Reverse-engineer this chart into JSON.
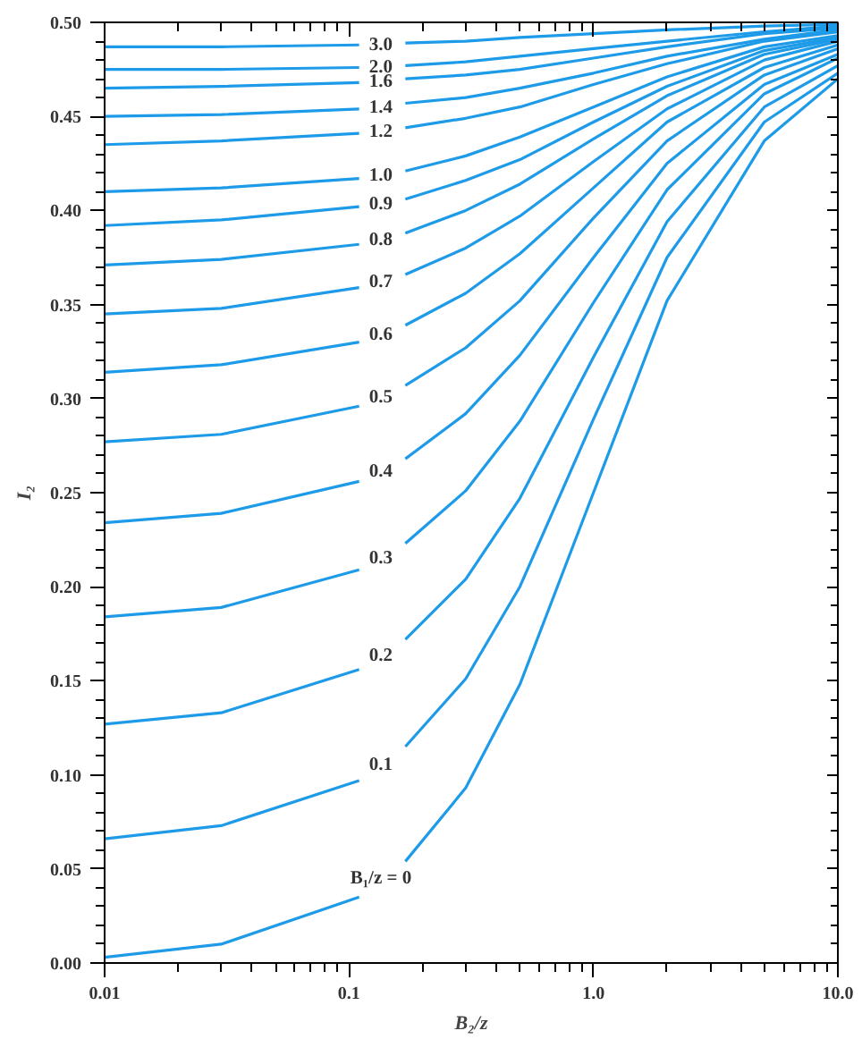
{
  "chart_data": {
    "type": "line",
    "xlabel": "B₂/z",
    "ylabel": "I₂",
    "log": "x",
    "grid": false,
    "marker": "none",
    "line_style": "solid",
    "xlim": [
      0.01,
      10
    ],
    "ylim": [
      0,
      0.5
    ],
    "xticks": [
      {
        "value": 0.01,
        "label": "0.01"
      },
      {
        "value": 0.02,
        "label": null
      },
      {
        "value": 0.03,
        "label": null
      },
      {
        "value": 0.04,
        "label": null
      },
      {
        "value": 0.05,
        "label": null
      },
      {
        "value": 0.06,
        "label": null
      },
      {
        "value": 0.07,
        "label": null
      },
      {
        "value": 0.08,
        "label": null
      },
      {
        "value": 0.09,
        "label": null
      },
      {
        "value": 0.1,
        "label": "0.1"
      },
      {
        "value": 0.2,
        "label": null
      },
      {
        "value": 0.3,
        "label": null
      },
      {
        "value": 0.4,
        "label": null
      },
      {
        "value": 0.5,
        "label": null
      },
      {
        "value": 0.6,
        "label": null
      },
      {
        "value": 0.7,
        "label": null
      },
      {
        "value": 0.8,
        "label": null
      },
      {
        "value": 0.9,
        "label": null
      },
      {
        "value": 1,
        "label": "1.0"
      },
      {
        "value": 2,
        "label": null
      },
      {
        "value": 3,
        "label": null
      },
      {
        "value": 4,
        "label": null
      },
      {
        "value": 5,
        "label": null
      },
      {
        "value": 6,
        "label": null
      },
      {
        "value": 7,
        "label": null
      },
      {
        "value": 8,
        "label": null
      },
      {
        "value": 9,
        "label": null
      },
      {
        "value": 10,
        "label": "10.0"
      }
    ],
    "yticks": [
      {
        "value": 0,
        "label": "0.00"
      },
      {
        "value": 0.01,
        "label": null
      },
      {
        "value": 0.02,
        "label": null
      },
      {
        "value": 0.03,
        "label": null
      },
      {
        "value": 0.04,
        "label": null
      },
      {
        "value": 0.05,
        "label": "0.05"
      },
      {
        "value": 0.06,
        "label": null
      },
      {
        "value": 0.07,
        "label": null
      },
      {
        "value": 0.08,
        "label": null
      },
      {
        "value": 0.09,
        "label": null
      },
      {
        "value": 0.1,
        "label": "0.10"
      },
      {
        "value": 0.11,
        "label": null
      },
      {
        "value": 0.12,
        "label": null
      },
      {
        "value": 0.13,
        "label": null
      },
      {
        "value": 0.14,
        "label": null
      },
      {
        "value": 0.15,
        "label": "0.15"
      },
      {
        "value": 0.16,
        "label": null
      },
      {
        "value": 0.17,
        "label": null
      },
      {
        "value": 0.18,
        "label": null
      },
      {
        "value": 0.19,
        "label": null
      },
      {
        "value": 0.2,
        "label": "0.20"
      },
      {
        "value": 0.21,
        "label": null
      },
      {
        "value": 0.22,
        "label": null
      },
      {
        "value": 0.23,
        "label": null
      },
      {
        "value": 0.24,
        "label": null
      },
      {
        "value": 0.25,
        "label": "0.25"
      },
      {
        "value": 0.26,
        "label": null
      },
      {
        "value": 0.27,
        "label": null
      },
      {
        "value": 0.28,
        "label": null
      },
      {
        "value": 0.29,
        "label": null
      },
      {
        "value": 0.3,
        "label": "0.30"
      },
      {
        "value": 0.31,
        "label": null
      },
      {
        "value": 0.32,
        "label": null
      },
      {
        "value": 0.33,
        "label": null
      },
      {
        "value": 0.34,
        "label": null
      },
      {
        "value": 0.35,
        "label": "0.35"
      },
      {
        "value": 0.36,
        "label": null
      },
      {
        "value": 0.37,
        "label": null
      },
      {
        "value": 0.38,
        "label": null
      },
      {
        "value": 0.39,
        "label": null
      },
      {
        "value": 0.4,
        "label": "0.40"
      },
      {
        "value": 0.41,
        "label": null
      },
      {
        "value": 0.42,
        "label": null
      },
      {
        "value": 0.43,
        "label": null
      },
      {
        "value": 0.44,
        "label": null
      },
      {
        "value": 0.45,
        "label": "0.45"
      },
      {
        "value": 0.46,
        "label": null
      },
      {
        "value": 0.47,
        "label": null
      },
      {
        "value": 0.48,
        "label": null
      },
      {
        "value": 0.49,
        "label": null
      },
      {
        "value": 0.5,
        "label": "0.50"
      }
    ],
    "x": [
      0.01,
      0.03,
      0.11,
      0.135,
      0.17,
      0.3,
      0.5,
      1,
      2,
      5,
      10
    ],
    "series": [
      {
        "name": "B₁/z = 0",
        "color": "#1e9be8",
        "values": [
          0.003,
          0.01,
          0.035,
          null,
          0.054,
          0.093,
          0.148,
          0.25,
          0.352,
          0.437,
          0.47
        ]
      },
      {
        "name": "0.1",
        "color": "#1e9be8",
        "values": [
          0.066,
          0.073,
          0.097,
          null,
          0.115,
          0.151,
          0.2,
          0.289,
          0.375,
          0.447,
          0.473
        ]
      },
      {
        "name": "0.2",
        "color": "#1e9be8",
        "values": [
          0.127,
          0.133,
          0.156,
          null,
          0.172,
          0.204,
          0.247,
          0.322,
          0.394,
          0.455,
          0.477
        ]
      },
      {
        "name": "0.3",
        "color": "#1e9be8",
        "values": [
          0.184,
          0.189,
          0.209,
          null,
          0.223,
          0.251,
          0.288,
          0.351,
          0.411,
          0.462,
          0.481
        ]
      },
      {
        "name": "0.4",
        "color": "#1e9be8",
        "values": [
          0.234,
          0.239,
          0.256,
          null,
          0.268,
          0.292,
          0.323,
          0.375,
          0.425,
          0.467,
          0.483
        ]
      },
      {
        "name": "0.5",
        "color": "#1e9be8",
        "values": [
          0.277,
          0.281,
          0.296,
          null,
          0.307,
          0.327,
          0.352,
          0.396,
          0.437,
          0.472,
          0.486
        ]
      },
      {
        "name": "0.6",
        "color": "#1e9be8",
        "values": [
          0.314,
          0.318,
          0.33,
          null,
          0.339,
          0.356,
          0.377,
          0.412,
          0.447,
          0.476,
          0.488
        ]
      },
      {
        "name": "0.7",
        "color": "#1e9be8",
        "values": [
          0.345,
          0.348,
          0.359,
          null,
          0.366,
          0.38,
          0.397,
          0.426,
          0.454,
          0.48,
          0.49
        ]
      },
      {
        "name": "0.8",
        "color": "#1e9be8",
        "values": [
          0.371,
          0.374,
          0.382,
          null,
          0.388,
          0.4,
          0.414,
          0.438,
          0.461,
          0.483,
          0.491
        ]
      },
      {
        "name": "0.9",
        "color": "#1e9be8",
        "values": [
          0.392,
          0.395,
          0.402,
          null,
          0.406,
          0.416,
          0.427,
          0.447,
          0.466,
          0.485,
          0.492
        ]
      },
      {
        "name": "1.0",
        "color": "#1e9be8",
        "values": [
          0.41,
          0.412,
          0.417,
          null,
          0.421,
          0.429,
          0.439,
          0.455,
          0.471,
          0.487,
          0.493
        ]
      },
      {
        "name": "1.2",
        "color": "#1e9be8",
        "values": [
          0.435,
          0.437,
          0.441,
          null,
          0.444,
          0.449,
          0.455,
          0.467,
          0.478,
          0.49,
          0.495
        ]
      },
      {
        "name": "1.4",
        "color": "#1e9be8",
        "values": [
          0.45,
          0.451,
          0.454,
          null,
          0.457,
          0.46,
          0.465,
          0.473,
          0.482,
          0.491,
          0.496
        ]
      },
      {
        "name": "1.6",
        "color": "#1e9be8",
        "values": [
          0.465,
          0.466,
          0.468,
          null,
          0.47,
          0.472,
          0.475,
          0.481,
          0.487,
          0.494,
          0.497
        ]
      },
      {
        "name": "2.0",
        "color": "#1e9be8",
        "values": [
          0.475,
          0.475,
          0.476,
          null,
          0.477,
          0.479,
          0.482,
          0.486,
          0.49,
          0.495,
          0.498
        ]
      },
      {
        "name": "3.0",
        "color": "#1e9be8",
        "values": [
          0.487,
          0.487,
          0.488,
          null,
          0.489,
          0.49,
          0.492,
          0.494,
          0.496,
          0.498,
          0.499
        ]
      }
    ]
  }
}
